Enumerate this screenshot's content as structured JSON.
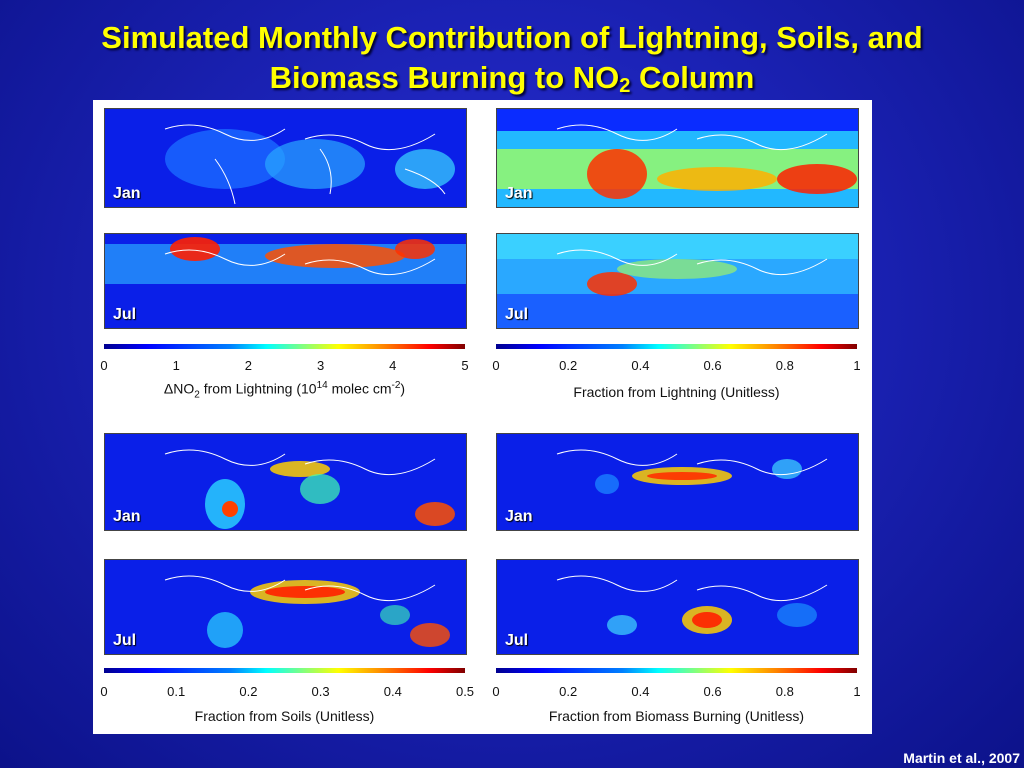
{
  "title": {
    "line1": "Simulated Monthly Contribution of Lightning, Soils, and",
    "line2_pre": "Biomass Burning to NO",
    "line2_sub": "2",
    "line2_post": " Column"
  },
  "panels": {
    "jan": "Jan",
    "jul": "Jul"
  },
  "colorbars": {
    "lightning_abs": {
      "ticks": [
        "0",
        "1",
        "2",
        "3",
        "4",
        "5"
      ],
      "label_pre": "ΔNO",
      "label_sub": "2",
      "label_mid": " from Lightning (10",
      "label_sup": "14",
      "label_mid2": " molec cm",
      "label_sup2": "-2",
      "label_post": ")"
    },
    "lightning_frac": {
      "ticks": [
        "0",
        "0.2",
        "0.4",
        "0.6",
        "0.8",
        "1"
      ],
      "label": "Fraction from Lightning (Unitless)"
    },
    "soils_frac": {
      "ticks": [
        "0",
        "0.1",
        "0.2",
        "0.3",
        "0.4",
        "0.5"
      ],
      "label": "Fraction from Soils (Unitless)"
    },
    "biomass_frac": {
      "ticks": [
        "0",
        "0.2",
        "0.4",
        "0.6",
        "0.8",
        "1"
      ],
      "label": "Fraction from Biomass Burning (Unitless)"
    }
  },
  "credit": "Martin et al., 2007",
  "colors": {
    "background": "#1b22b5",
    "title": "#ffff00"
  }
}
